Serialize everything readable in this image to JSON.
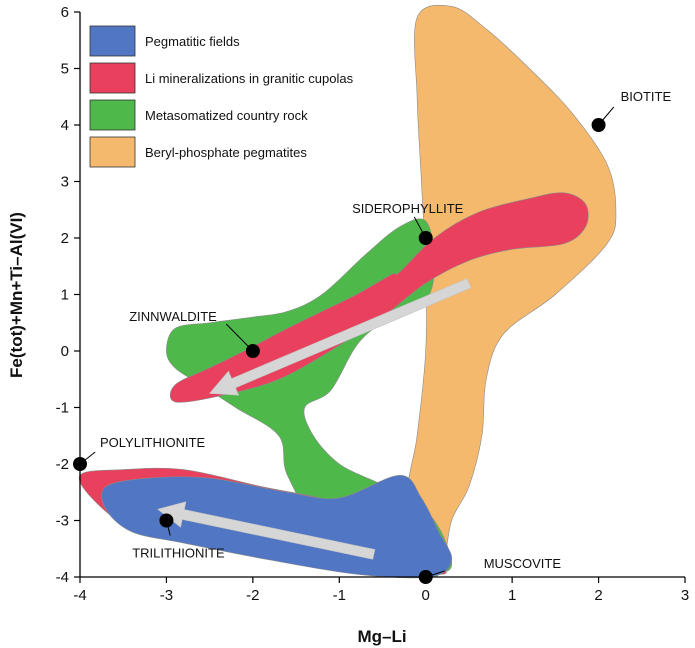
{
  "chart_data": {
    "type": "scatter",
    "title": "",
    "xlabel": "Mg–Li",
    "ylabel": "Fe(tot)+Mn+Ti–Al(VI)",
    "xlim": [
      -4,
      3
    ],
    "ylim": [
      -4,
      6
    ],
    "x_ticks": [
      "-4",
      "-3",
      "-2",
      "-1",
      "0",
      "1",
      "2",
      "3"
    ],
    "y_ticks": [
      "-4",
      "-3",
      "-2",
      "-1",
      "0",
      "1",
      "2",
      "3",
      "4",
      "5",
      "6"
    ],
    "grid": false,
    "legend_position": "top-left",
    "fields": [
      {
        "name": "Beryl-phosphate pegmatites",
        "color": "#f5b96e",
        "points": [
          [
            -0.1,
            5.9
          ],
          [
            0.3,
            6.1
          ],
          [
            0.7,
            5.7
          ],
          [
            1.2,
            5.0
          ],
          [
            1.7,
            4.2
          ],
          [
            2.1,
            3.3
          ],
          [
            2.2,
            2.5
          ],
          [
            2.1,
            1.9
          ],
          [
            1.5,
            1.0
          ],
          [
            0.9,
            0.3
          ],
          [
            0.7,
            -0.5
          ],
          [
            0.65,
            -1.5
          ],
          [
            0.5,
            -2.4
          ],
          [
            0.3,
            -3.0
          ],
          [
            0.2,
            -3.8
          ],
          [
            0.05,
            -3.9
          ],
          [
            -0.2,
            -2.6
          ],
          [
            -0.1,
            -1.5
          ],
          [
            0,
            0
          ],
          [
            0,
            1.5
          ],
          [
            -0.05,
            3.0
          ],
          [
            -0.1,
            4.5
          ]
        ]
      },
      {
        "name": "Metasomatized country rock",
        "color": "#4eb84a",
        "points": [
          [
            -1.2,
            1.0
          ],
          [
            -0.7,
            1.7
          ],
          [
            -0.3,
            2.2
          ],
          [
            0,
            2.3
          ],
          [
            0.1,
            1.6
          ],
          [
            0,
            0.9
          ],
          [
            -0.5,
            0.5
          ],
          [
            -0.8,
            0.1
          ],
          [
            -1.1,
            -0.7
          ],
          [
            -1.4,
            -1.0
          ],
          [
            -1.3,
            -1.5
          ],
          [
            -1.0,
            -2.0
          ],
          [
            -0.6,
            -2.3
          ],
          [
            -0.3,
            -2.5
          ],
          [
            0.1,
            -3.0
          ],
          [
            0.3,
            -3.8
          ],
          [
            0,
            -3.9
          ],
          [
            -0.4,
            -3.6
          ],
          [
            -1.2,
            -3.1
          ],
          [
            -1.6,
            -2.2
          ],
          [
            -1.7,
            -1.5
          ],
          [
            -2.2,
            -1.0
          ],
          [
            -2.6,
            -0.6
          ],
          [
            -2.9,
            -0.3
          ],
          [
            -3.0,
            0
          ],
          [
            -2.9,
            0.4
          ],
          [
            -2.5,
            0.5
          ],
          [
            -2.0,
            0.6
          ],
          [
            -1.6,
            0.7
          ]
        ]
      },
      {
        "name": "Li mineralizations in granitic cupolas",
        "color": "#e9415d",
        "points": [
          [
            -0.3,
            1.4
          ],
          [
            0.1,
            2.0
          ],
          [
            0.6,
            2.45
          ],
          [
            1.2,
            2.7
          ],
          [
            1.6,
            2.8
          ],
          [
            1.85,
            2.6
          ],
          [
            1.85,
            2.2
          ],
          [
            1.6,
            1.9
          ],
          [
            1.0,
            1.8
          ],
          [
            0.5,
            1.6
          ],
          [
            0,
            1.2
          ],
          [
            -0.5,
            0.6
          ],
          [
            -1.0,
            0.1
          ],
          [
            -1.7,
            -0.5
          ],
          [
            -2.4,
            -0.8
          ],
          [
            -2.9,
            -0.9
          ],
          [
            -2.9,
            -0.6
          ],
          [
            -2.5,
            -0.3
          ],
          [
            -2.1,
            0
          ],
          [
            -1.6,
            0.4
          ],
          [
            -1.2,
            0.7
          ],
          [
            -0.8,
            1.0
          ],
          [
            -0.4,
            1.35
          ],
          [
            -4.0,
            -2.2
          ],
          [
            -3.5,
            -2.1
          ],
          [
            -2.8,
            -2.1
          ],
          [
            -1.9,
            -2.4
          ],
          [
            -1.0,
            -2.7
          ],
          [
            -0.3,
            -3.3
          ],
          [
            0.1,
            -3.7
          ],
          [
            0.2,
            -3.95
          ],
          [
            -0.5,
            -3.8
          ],
          [
            -1.6,
            -3.5
          ],
          [
            -2.6,
            -3.3
          ],
          [
            -3.4,
            -3.1
          ],
          [
            -3.8,
            -2.7
          ]
        ]
      },
      {
        "name": "Pegmatitic fields",
        "color": "#5076c4",
        "points": [
          [
            -3.7,
            -2.4
          ],
          [
            -3.2,
            -2.25
          ],
          [
            -2.5,
            -2.25
          ],
          [
            -1.6,
            -2.5
          ],
          [
            -1.0,
            -2.6
          ],
          [
            -0.3,
            -2.2
          ],
          [
            -0.05,
            -2.6
          ],
          [
            0.15,
            -3.2
          ],
          [
            0.3,
            -3.7
          ],
          [
            0.05,
            -4.0
          ],
          [
            -0.8,
            -3.95
          ],
          [
            -1.8,
            -3.7
          ],
          [
            -2.8,
            -3.4
          ],
          [
            -3.4,
            -3.2
          ],
          [
            -3.7,
            -2.8
          ]
        ]
      }
    ],
    "arrows": [
      {
        "from": [
          0.5,
          1.2
        ],
        "to": [
          -2.5,
          -0.75
        ]
      },
      {
        "from": [
          -0.6,
          -3.6
        ],
        "to": [
          -3.1,
          -2.8
        ]
      }
    ],
    "points": [
      {
        "label": "BIOTITE",
        "x": 2,
        "y": 4
      },
      {
        "label": "SIDEROPHYLLITE",
        "x": 0,
        "y": 2
      },
      {
        "label": "ZINNWALDITE",
        "x": -2,
        "y": 0
      },
      {
        "label": "POLYLITHIONITE",
        "x": -4,
        "y": -2
      },
      {
        "label": "TRILITHIONITE",
        "x": -3,
        "y": -3
      },
      {
        "label": "MUSCOVITE",
        "x": 0,
        "y": -4
      }
    ],
    "legend": [
      {
        "label": "Pegmatitic fields",
        "color": "#5076c4"
      },
      {
        "label": "Li mineralizations in granitic cupolas",
        "color": "#e9415d"
      },
      {
        "label": "Metasomatized country rock",
        "color": "#4eb84a"
      },
      {
        "label": "Beryl-phosphate pegmatites",
        "color": "#f5b96e"
      }
    ]
  }
}
